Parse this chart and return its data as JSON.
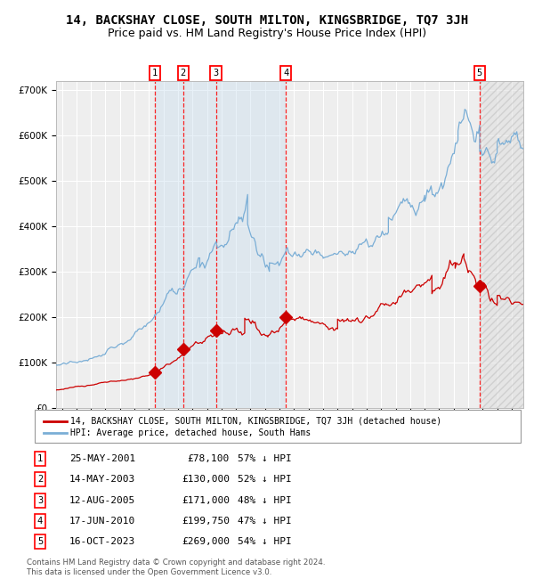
{
  "title": "14, BACKSHAY CLOSE, SOUTH MILTON, KINGSBRIDGE, TQ7 3JH",
  "subtitle": "Price paid vs. HM Land Registry's House Price Index (HPI)",
  "ylim": [
    0,
    720000
  ],
  "yticks": [
    0,
    100000,
    200000,
    300000,
    400000,
    500000,
    600000,
    700000
  ],
  "ytick_labels": [
    "£0",
    "£100K",
    "£200K",
    "£300K",
    "£400K",
    "£500K",
    "£600K",
    "£700K"
  ],
  "xlim_start": 1994.6,
  "xlim_end": 2026.8,
  "background_color": "#ffffff",
  "plot_bg_color": "#eeeeee",
  "grid_color": "#ffffff",
  "sale_dates": [
    2001.38,
    2003.36,
    2005.61,
    2010.45,
    2023.79
  ],
  "sale_prices": [
    78100,
    130000,
    171000,
    199750,
    269000
  ],
  "sale_labels": [
    "1",
    "2",
    "3",
    "4",
    "5"
  ],
  "sale_date_strings": [
    "25-MAY-2001",
    "14-MAY-2003",
    "12-AUG-2005",
    "17-JUN-2010",
    "16-OCT-2023"
  ],
  "sale_price_strings": [
    "£78,100",
    "£130,000",
    "£171,000",
    "£199,750",
    "£269,000"
  ],
  "sale_pct_strings": [
    "57% ↓ HPI",
    "52% ↓ HPI",
    "48% ↓ HPI",
    "47% ↓ HPI",
    "54% ↓ HPI"
  ],
  "red_line_color": "#cc0000",
  "blue_line_color": "#7aaed6",
  "blue_fill_color": "#cce0f0",
  "shaded_region_start": 2001.38,
  "shaded_region_end": 2010.45,
  "hatch_region_start": 2023.79,
  "hatch_region_end": 2026.8,
  "legend_label_red": "14, BACKSHAY CLOSE, SOUTH MILTON, KINGSBRIDGE, TQ7 3JH (detached house)",
  "legend_label_blue": "HPI: Average price, detached house, South Hams",
  "footer_text": "Contains HM Land Registry data © Crown copyright and database right 2024.\nThis data is licensed under the Open Government Licence v3.0.",
  "title_fontsize": 10,
  "subtitle_fontsize": 9
}
